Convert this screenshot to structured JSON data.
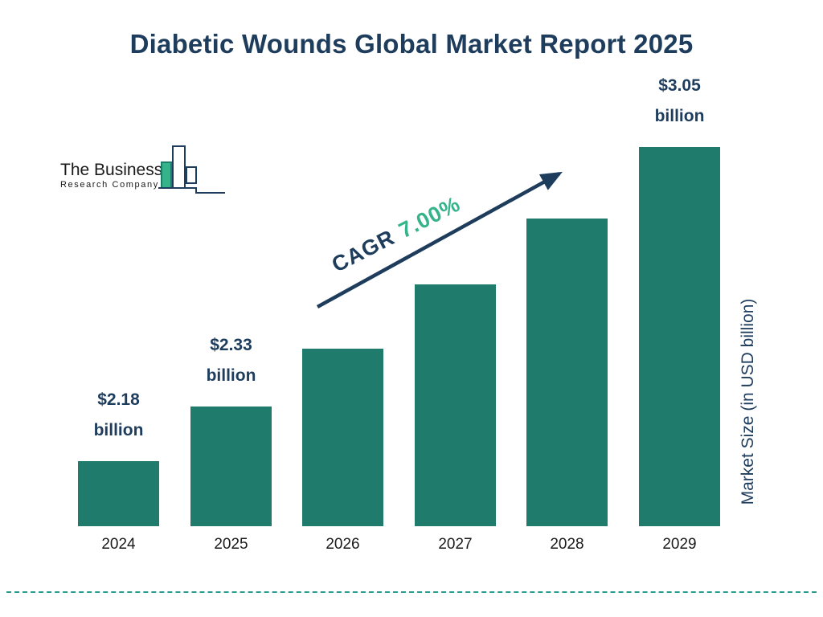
{
  "title": "Diabetic Wounds Global Market Report 2025",
  "logo": {
    "line1": "The Business",
    "line2": "Research Company"
  },
  "cagr": {
    "prefix": "CAGR",
    "value": "7.00%"
  },
  "y_axis_label": "Market Size (in USD billion)",
  "colors": {
    "navy": "#1e3c5c",
    "teal_bar": "#1f7c6c",
    "green_accent": "#35b38a",
    "dash_teal": "#2a9d8f"
  },
  "chart_data": {
    "type": "bar",
    "title": "Diabetic Wounds Global Market Report 2025",
    "categories": [
      "2024",
      "2025",
      "2026",
      "2027",
      "2028",
      "2029"
    ],
    "values": [
      2.18,
      2.33,
      2.49,
      2.67,
      2.85,
      3.05
    ],
    "bar_labels": [
      "$2.18 billion",
      "$2.33 billion",
      null,
      null,
      null,
      "$3.05 billion"
    ],
    "bar_label_lines": [
      [
        "$2.18",
        "billion"
      ],
      [
        "$2.33",
        "billion"
      ],
      null,
      null,
      null,
      [
        "$3.05",
        "billion"
      ]
    ],
    "xlabel": "",
    "ylabel": "Market Size (in USD billion)",
    "ylim": [
      2.0,
      3.1
    ],
    "baseline_value": 2.0,
    "annotation": "CAGR 7.00%",
    "grid": false,
    "legend": "none",
    "bar_color": "#1f7c6c"
  }
}
